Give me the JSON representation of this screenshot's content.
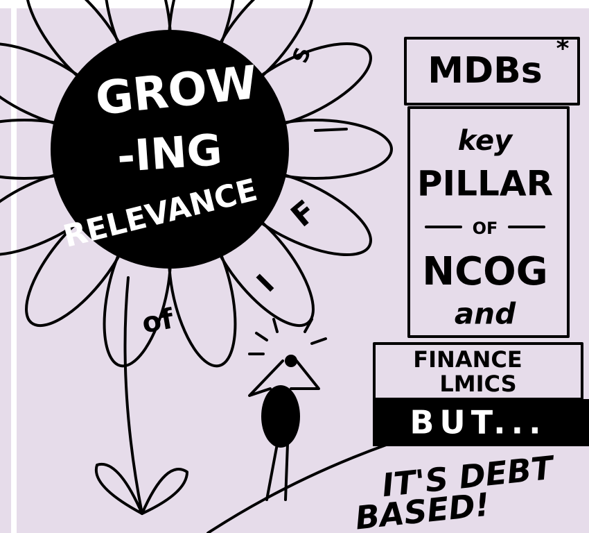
{
  "flower": {
    "center_lines": [
      "GROW",
      "-ING",
      "RELEVANCE"
    ],
    "petal_labels": [
      "S",
      "F",
      "I",
      "of"
    ]
  },
  "column": {
    "title": "MDBs",
    "asterisk": "*",
    "lines": [
      "key",
      "PILLAR",
      "OF",
      "NCOG",
      "and"
    ],
    "finance": [
      "FINANCE",
      "LMICS"
    ],
    "but": "BUT..."
  },
  "footer": [
    "IT'S DEBT",
    "BASED!"
  ]
}
